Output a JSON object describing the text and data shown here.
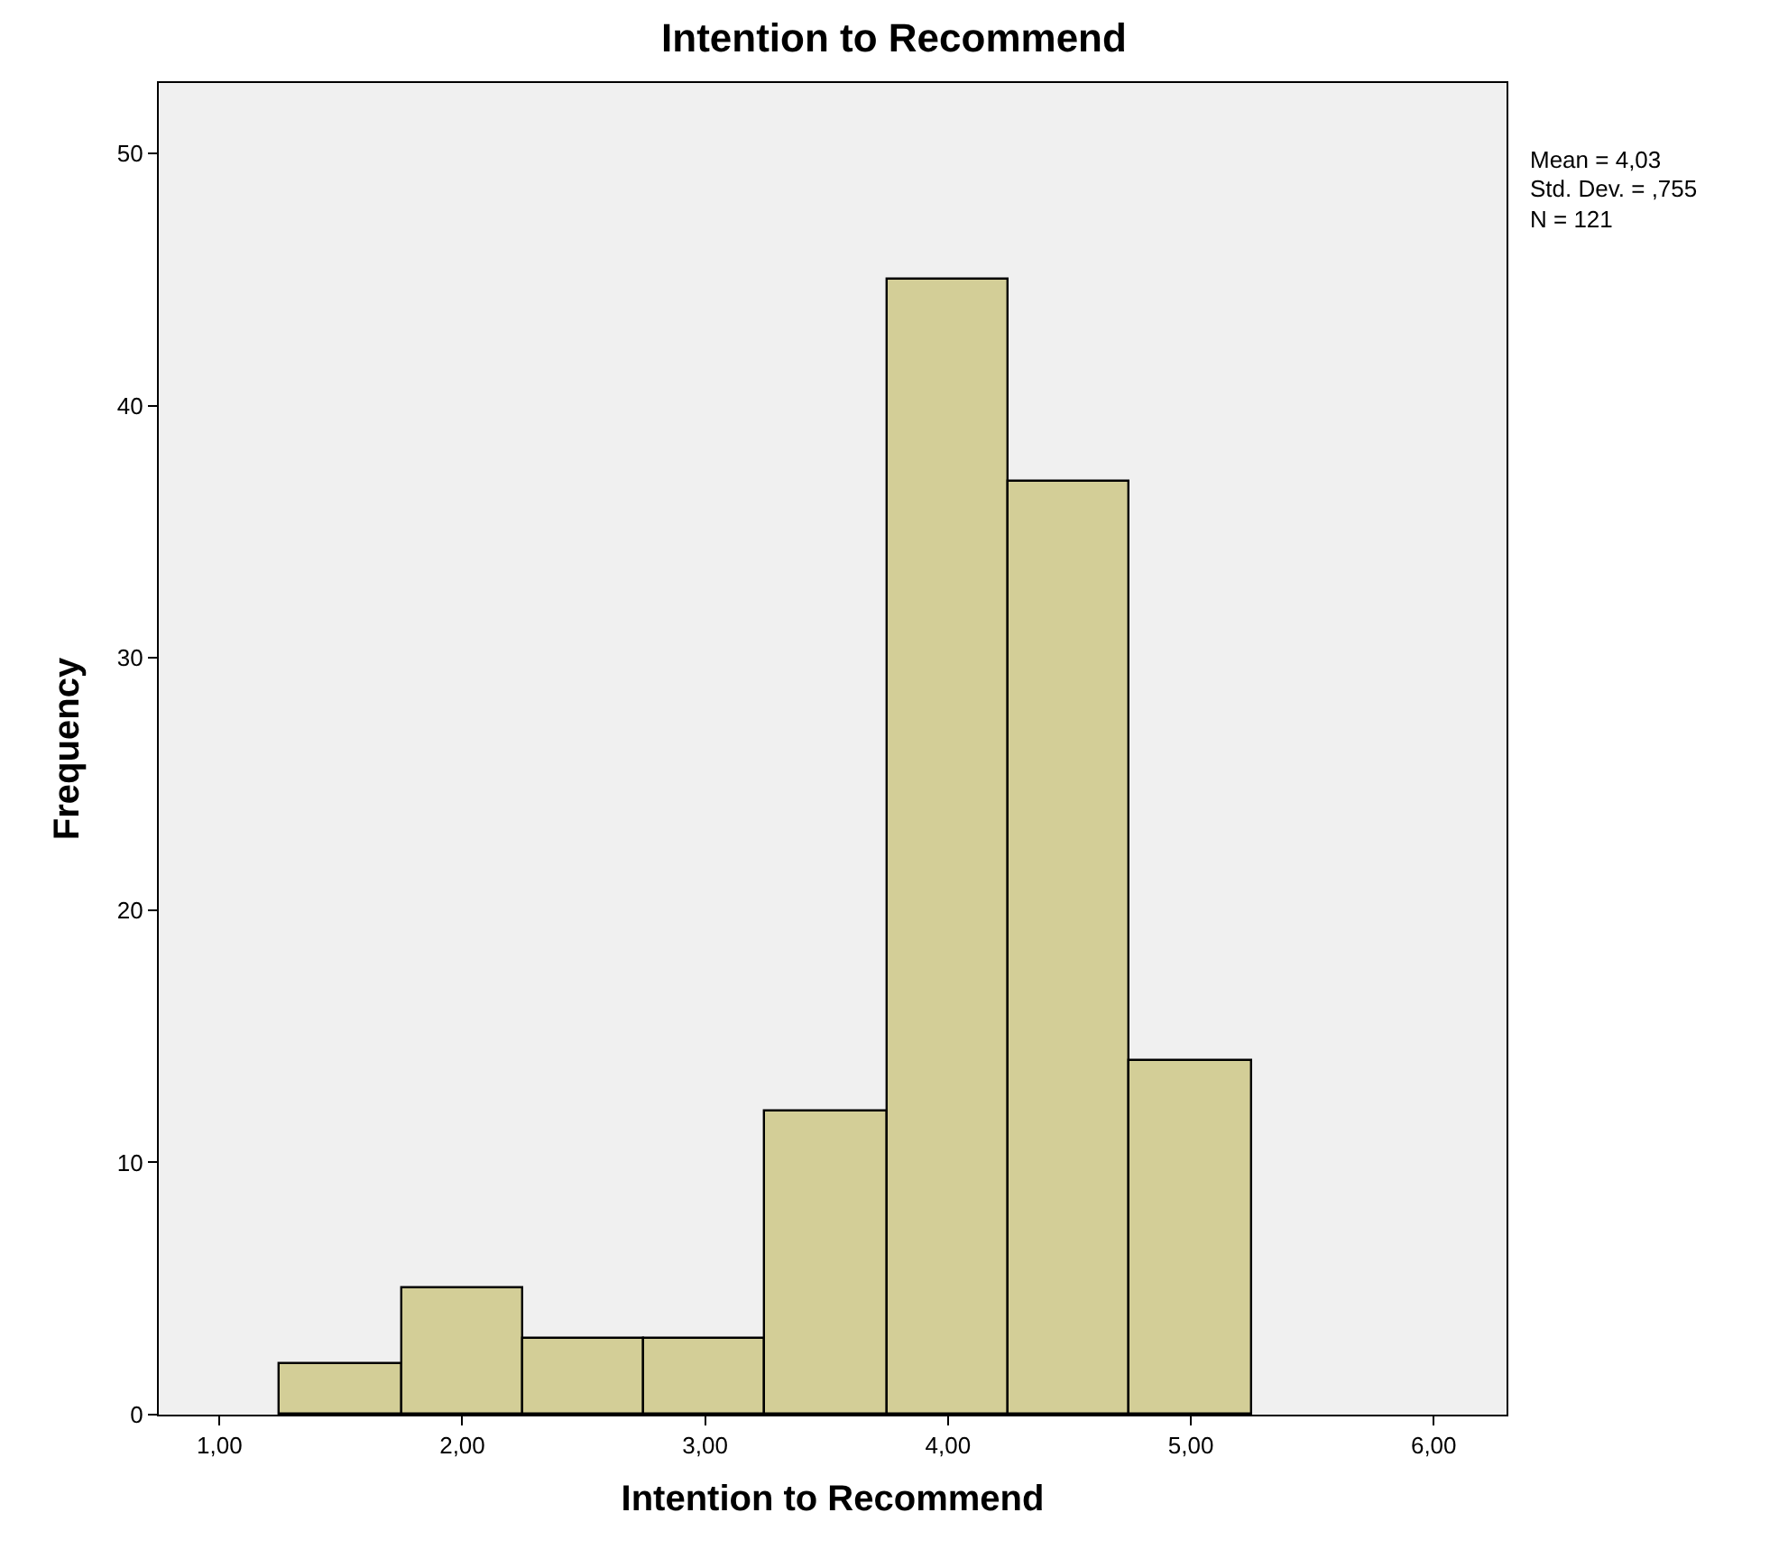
{
  "chart_data": {
    "type": "histogram",
    "title": "Intention to Recommend",
    "xlabel": "Intention to Recommend",
    "ylabel": "Frequency",
    "bins": [
      1.25,
      1.75,
      2.25,
      2.75,
      3.25,
      3.75,
      4.25,
      4.75,
      5.25
    ],
    "values": [
      2,
      5,
      3,
      3,
      12,
      45,
      37,
      14
    ],
    "color": "#d3ce97",
    "xlim": [
      0.75,
      6.3
    ],
    "xticks": [
      {
        "value": 1,
        "label": "1,00"
      },
      {
        "value": 2,
        "label": "2,00"
      },
      {
        "value": 3,
        "label": "3,00"
      },
      {
        "value": 4,
        "label": "4,00"
      },
      {
        "value": 5,
        "label": "5,00"
      },
      {
        "value": 6,
        "label": "6,00"
      }
    ],
    "ylim": [
      0,
      52.8
    ],
    "yticks": [
      0,
      10,
      20,
      30,
      40,
      50
    ],
    "grid": false,
    "annotations": [
      "Mean = 4,03",
      "Std. Dev. = ,755",
      "N = 121"
    ]
  }
}
